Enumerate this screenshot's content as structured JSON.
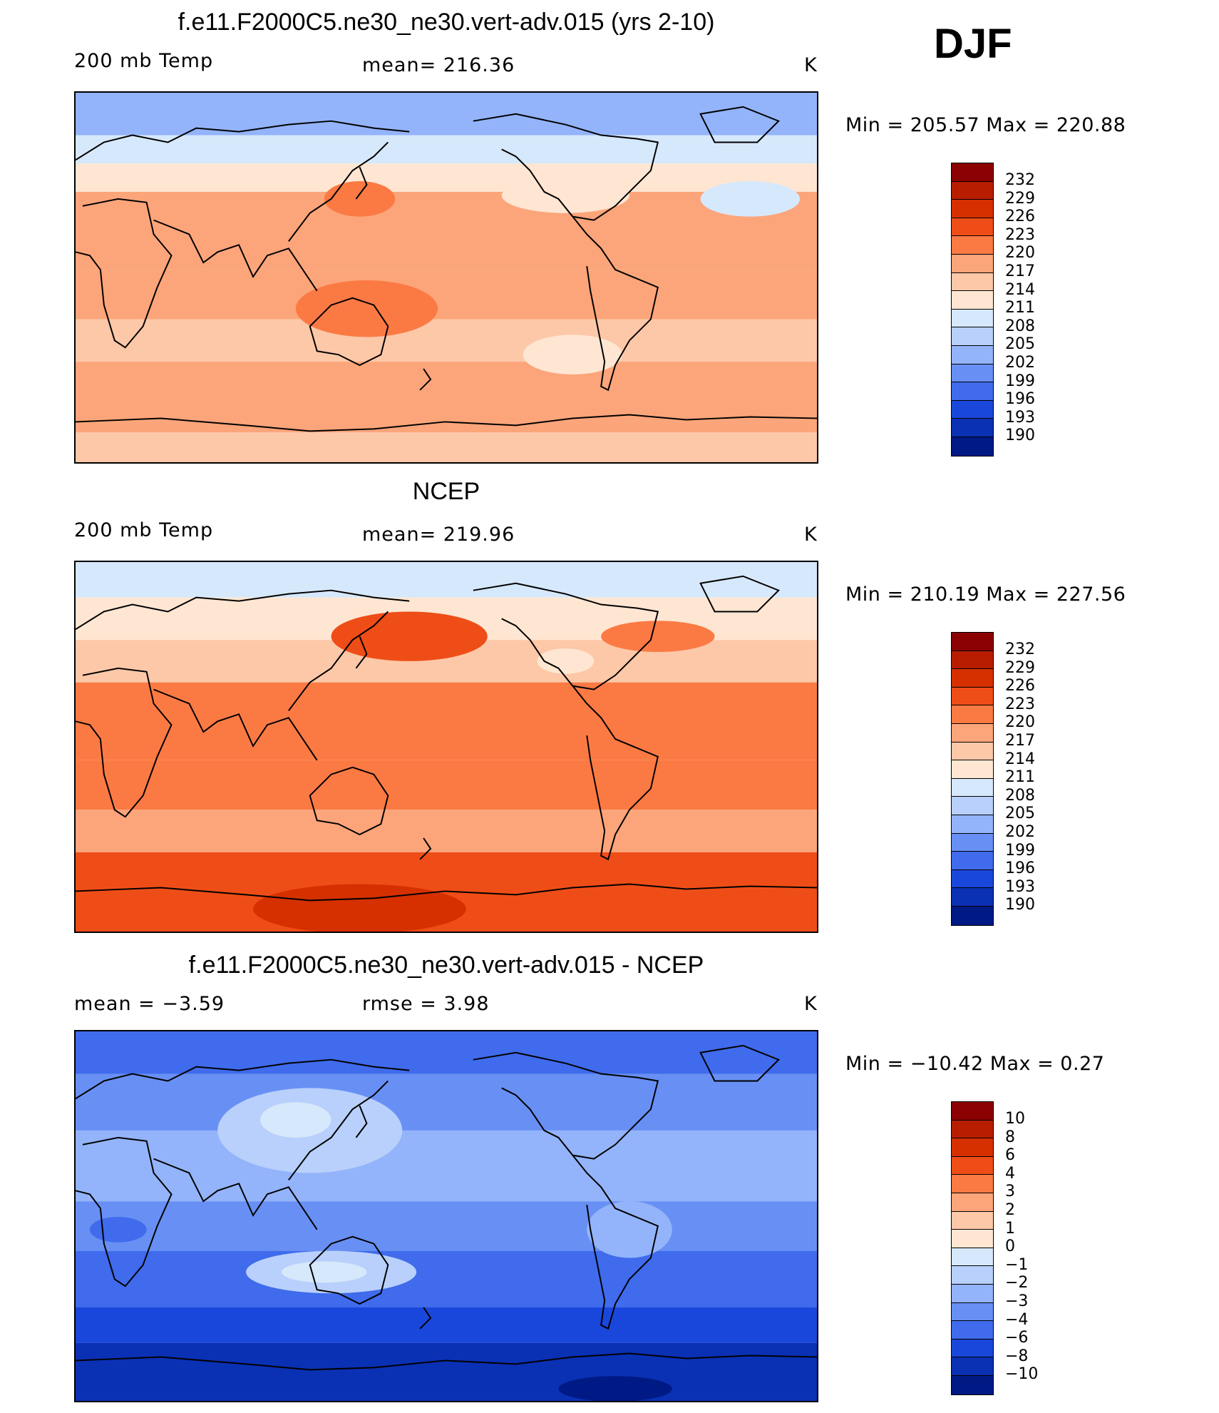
{
  "season": "DJF",
  "panels": [
    {
      "title": "f.e11.F2000C5.ne30_ne30.vert-adv.015 (yrs 2-10)",
      "left_label": "200 mb Temp",
      "center_label": "mean=  216.36",
      "units": "K",
      "minmax": "Min  =  205.57  Max  =  220.88",
      "colorbar_labels": [
        "232",
        "229",
        "226",
        "223",
        "220",
        "217",
        "214",
        "211",
        "208",
        "205",
        "202",
        "199",
        "196",
        "193",
        "190"
      ],
      "colors": [
        "#8b0000",
        "#b81d00",
        "#d63000",
        "#ef4d17",
        "#fb7a44",
        "#fca57a",
        "#fdc8a8",
        "#fee6d2",
        "#d6e8fb",
        "#b8d0fb",
        "#93b4fa",
        "#6890f4",
        "#3f6bec",
        "#1a47db",
        "#0a30b3",
        "#001a85"
      ],
      "bands": [
        {
          "y": 0,
          "h": 60,
          "c": "#93b4fa"
        },
        {
          "y": 60,
          "h": 40,
          "c": "#d6e8fb"
        },
        {
          "y": 100,
          "h": 40,
          "c": "#fee6d2"
        },
        {
          "y": 140,
          "h": 110,
          "c": "#fca57a"
        },
        {
          "y": 250,
          "h": 70,
          "c": "#fca57a"
        },
        {
          "y": 320,
          "h": 60,
          "c": "#fdc8a8"
        },
        {
          "y": 380,
          "h": 100,
          "c": "#fca57a"
        },
        {
          "y": 480,
          "h": 42,
          "c": "#fdc8a8"
        }
      ]
    },
    {
      "title": "NCEP",
      "left_label": "200 mb Temp",
      "center_label": "mean=  219.96",
      "units": "K",
      "minmax": "Min  =  210.19  Max  =  227.56",
      "colorbar_labels": [
        "232",
        "229",
        "226",
        "223",
        "220",
        "217",
        "214",
        "211",
        "208",
        "205",
        "202",
        "199",
        "196",
        "193",
        "190"
      ],
      "colors": [
        "#8b0000",
        "#b81d00",
        "#d63000",
        "#ef4d17",
        "#fb7a44",
        "#fca57a",
        "#fdc8a8",
        "#fee6d2",
        "#d6e8fb",
        "#b8d0fb",
        "#93b4fa",
        "#6890f4",
        "#3f6bec",
        "#1a47db",
        "#0a30b3",
        "#001a85"
      ],
      "bands": [
        {
          "y": 0,
          "h": 50,
          "c": "#d6e8fb"
        },
        {
          "y": 50,
          "h": 60,
          "c": "#fee6d2"
        },
        {
          "y": 110,
          "h": 60,
          "c": "#fdc8a8"
        },
        {
          "y": 170,
          "h": 110,
          "c": "#fb7a44"
        },
        {
          "y": 280,
          "h": 70,
          "c": "#fb7a44"
        },
        {
          "y": 350,
          "h": 60,
          "c": "#fca57a"
        },
        {
          "y": 410,
          "h": 50,
          "c": "#ef4d17"
        },
        {
          "y": 460,
          "h": 62,
          "c": "#ef4d17"
        }
      ]
    },
    {
      "title": "f.e11.F2000C5.ne30_ne30.vert-adv.015 - NCEP",
      "left_label": "mean  =     −3.59",
      "center_label": "rmse  =     3.98",
      "units": "K",
      "minmax": "Min  =  −10.42  Max  =     0.27",
      "colorbar_labels": [
        "10",
        "8",
        "6",
        "4",
        "3",
        "2",
        "1",
        "0",
        "−1",
        "−2",
        "−3",
        "−4",
        "−6",
        "−8",
        "−10"
      ],
      "colors": [
        "#8b0000",
        "#b81d00",
        "#d63000",
        "#ef4d17",
        "#fb7a44",
        "#fca57a",
        "#fdc8a8",
        "#fee6d2",
        "#d6e8fb",
        "#b8d0fb",
        "#93b4fa",
        "#6890f4",
        "#3f6bec",
        "#1a47db",
        "#0a30b3",
        "#001a85"
      ],
      "bands": [
        {
          "y": 0,
          "h": 60,
          "c": "#3f6bec"
        },
        {
          "y": 60,
          "h": 80,
          "c": "#6890f4"
        },
        {
          "y": 140,
          "h": 100,
          "c": "#93b4fa"
        },
        {
          "y": 240,
          "h": 70,
          "c": "#6890f4"
        },
        {
          "y": 310,
          "h": 80,
          "c": "#3f6bec"
        },
        {
          "y": 390,
          "h": 50,
          "c": "#1a47db"
        },
        {
          "y": 440,
          "h": 82,
          "c": "#0a30b3"
        }
      ]
    }
  ]
}
